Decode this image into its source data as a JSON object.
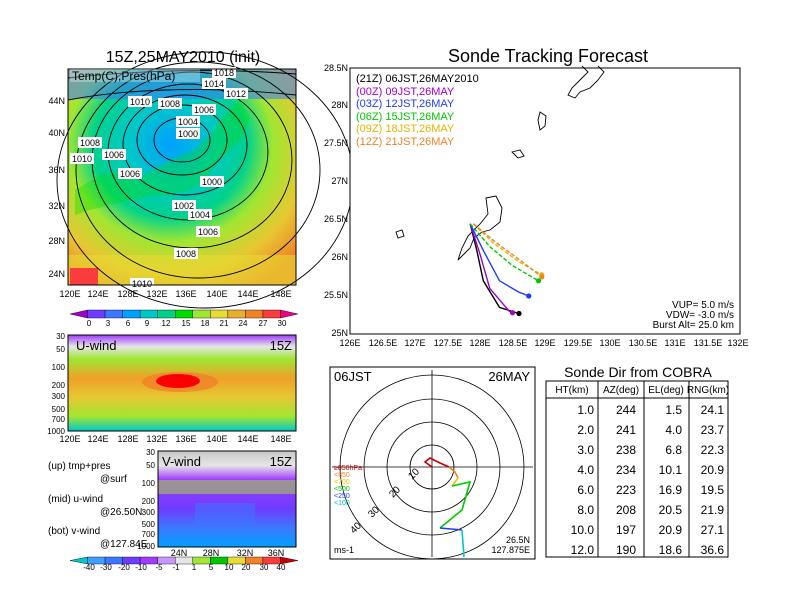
{
  "left_panel": {
    "title": "15Z,25MAY2010 (init)",
    "overlay_label": "Temp(C),Pres(hPa)",
    "lat_labels": [
      "44N",
      "40N",
      "36N",
      "32N",
      "28N",
      "24N"
    ],
    "lon_labels": [
      "120E",
      "124E",
      "128E",
      "132E",
      "136E",
      "140E",
      "144E",
      "148E"
    ],
    "isobar_labels": [
      "1018",
      "1014",
      "1012",
      "1010",
      "1008",
      "1006",
      "1004",
      "1002",
      "1000",
      "1006",
      "1008",
      "1010",
      "1012"
    ],
    "colorbar_labels": [
      "0",
      "3",
      "6",
      "9",
      "12",
      "15",
      "18",
      "21",
      "24",
      "27",
      "30"
    ],
    "colorbar_colors": [
      "#a000c8",
      "#6e3cff",
      "#3c78ff",
      "#00a0ff",
      "#00c8c8",
      "#00d28c",
      "#00dc00",
      "#a0e632",
      "#e6dc32",
      "#e6af2d",
      "#f08228",
      "#fa3c3c",
      "#f00082"
    ]
  },
  "uwind_panel": {
    "label": "U-wind",
    "time": "15Z",
    "y_labels": [
      "30",
      "50",
      "100",
      "200",
      "300",
      "500",
      "700",
      "1000"
    ],
    "x_labels": [
      "120E",
      "124E",
      "128E",
      "132E",
      "136E",
      "140E",
      "144E",
      "148E"
    ]
  },
  "vwind_panel": {
    "label": "V-wind",
    "time": "15Z",
    "y_labels": [
      "30",
      "50",
      "100",
      "200",
      "300",
      "500",
      "700",
      "1000"
    ],
    "x_labels": [
      "24N",
      "28N",
      "32N",
      "36N"
    ],
    "colorbar_labels": [
      "-40",
      "-30",
      "-20",
      "-10",
      "-5",
      "-1",
      "1",
      "5",
      "10",
      "20",
      "30",
      "40"
    ],
    "colorbar_colors": [
      "#00c8c8",
      "#3ca0ff",
      "#3c78ff",
      "#6e3cff",
      "#a03cff",
      "#c896ff",
      "#e6e6e6",
      "#a0e632",
      "#00c800",
      "#e6dc32",
      "#f08228",
      "#fa3c3c",
      "#c80000"
    ]
  },
  "legend_notes": {
    "line1": "(up) tmp+pres",
    "line2": "@surf",
    "line3": "(mid) u-wind",
    "line4": "@26.50N",
    "line5": "(bot) v-wind",
    "line6": "@127.84E"
  },
  "tracking": {
    "title": "Sonde Tracking Forecast",
    "lat_labels": [
      "28.5N",
      "28N",
      "27.5N",
      "27N",
      "26.5N",
      "26N",
      "25.5N",
      "25N"
    ],
    "lon_labels": [
      "126E",
      "126.5E",
      "127E",
      "127.5E",
      "128E",
      "128.5E",
      "129E",
      "129.5E",
      "130E",
      "130.5E",
      "131E",
      "131.5E",
      "132E"
    ],
    "launches": [
      {
        "label": "(21Z)  06JST,26MAY2010",
        "color": "#000000"
      },
      {
        "label": "(00Z)  09JST,26MAY",
        "color": "#a000c8"
      },
      {
        "label": "(03Z)  12JST,26MAY",
        "color": "#1e3cff"
      },
      {
        "label": "(06Z)  15JST,26MAY",
        "color": "#00c800"
      },
      {
        "label": "(09Z)  18JST,26MAY",
        "color": "#e6b400"
      },
      {
        "label": "(12Z)  21JST,26MAY",
        "color": "#f08228"
      }
    ],
    "params": {
      "vup": "VUP= 5.0 m/s",
      "vdw": "VDW= -3.0 m/s",
      "burst": "Burst Alt= 25.0 km"
    }
  },
  "polar": {
    "time_label": "06JST",
    "date_label": "26MAY",
    "unit": "ms-1",
    "pos1": "26.5N",
    "pos2": "127.875E",
    "ring_labels": [
      "10",
      "20",
      "30",
      "40"
    ],
    "level_legend": [
      {
        "label": "≥850hPa",
        "color": "#c80000"
      },
      {
        "label": "<850",
        "color": "#f08228"
      },
      {
        "label": "<700",
        "color": "#e6c800"
      },
      {
        "label": "<500",
        "color": "#00c800"
      },
      {
        "label": "<250",
        "color": "#1e3cff"
      },
      {
        "label": "<100",
        "color": "#00c8c8"
      }
    ]
  },
  "sonde_dir": {
    "title": "Sonde Dir from COBRA",
    "headers": [
      "HT(km)",
      "AZ(deg)",
      "EL(deg)",
      "RNG(km)"
    ],
    "rows": [
      [
        "1.0",
        "244",
        "1.5",
        "24.1"
      ],
      [
        "2.0",
        "241",
        "4.0",
        "23.7"
      ],
      [
        "3.0",
        "238",
        "6.8",
        "22.3"
      ],
      [
        "4.0",
        "234",
        "10.1",
        "20.9"
      ],
      [
        "6.0",
        "223",
        "16.9",
        "19.5"
      ],
      [
        "8.0",
        "208",
        "20.5",
        "21.9"
      ],
      [
        "10.0",
        "197",
        "20.9",
        "27.1"
      ],
      [
        "12.0",
        "190",
        "18.6",
        "36.6"
      ]
    ]
  },
  "chart_data": [
    {
      "type": "heatmap",
      "title": "15Z,25MAY2010 (init)",
      "subtitle": "Temp(C),Pres(hPa)",
      "x_ticks": [
        "120E",
        "124E",
        "128E",
        "132E",
        "136E",
        "140E",
        "144E",
        "148E"
      ],
      "y_ticks": [
        "24N",
        "28N",
        "32N",
        "36N",
        "40N",
        "44N"
      ],
      "color_levels": [
        0,
        3,
        6,
        9,
        12,
        15,
        18,
        21,
        24,
        27,
        30
      ],
      "isobar_values_hPa": [
        1018,
        1014,
        1012,
        1010,
        1008,
        1006,
        1004,
        1002,
        1000
      ]
    },
    {
      "type": "heatmap",
      "title": "U-wind",
      "x_ticks": [
        "120E",
        "124E",
        "128E",
        "132E",
        "136E",
        "140E",
        "144E",
        "148E"
      ],
      "y_ticks_hPa": [
        30,
        50,
        100,
        200,
        300,
        500,
        700,
        1000
      ]
    },
    {
      "type": "heatmap",
      "title": "V-wind",
      "x_ticks": [
        "24N",
        "28N",
        "32N",
        "36N"
      ],
      "y_ticks_hPa": [
        30,
        50,
        100,
        200,
        300,
        500,
        700,
        1000
      ],
      "color_levels": [
        -40,
        -30,
        -20,
        -10,
        -5,
        -1,
        1,
        5,
        10,
        20,
        30,
        40
      ]
    },
    {
      "type": "line",
      "title": "Sonde Tracking Forecast",
      "xlim": [
        126,
        132
      ],
      "ylim": [
        25,
        28.5
      ],
      "series": [
        {
          "name": "(21Z) 06JST,26MAY2010",
          "points": [
            [
              127.85,
              26.45
            ],
            [
              127.95,
              26.1
            ],
            [
              128.05,
              25.7
            ],
            [
              128.3,
              25.35
            ],
            [
              128.6,
              25.27
            ]
          ]
        },
        {
          "name": "(00Z) 09JST,26MAY",
          "points": [
            [
              127.85,
              26.45
            ],
            [
              128.0,
              26.05
            ],
            [
              128.15,
              25.6
            ],
            [
              128.45,
              25.3
            ],
            [
              128.5,
              25.28
            ]
          ]
        },
        {
          "name": "(03Z) 12JST,26MAY",
          "points": [
            [
              127.85,
              26.45
            ],
            [
              128.05,
              26.1
            ],
            [
              128.3,
              25.7
            ],
            [
              128.6,
              25.55
            ],
            [
              128.75,
              25.5
            ]
          ]
        },
        {
          "name": "(06Z) 15JST,26MAY",
          "points": [
            [
              127.85,
              26.45
            ],
            [
              128.15,
              26.15
            ],
            [
              128.5,
              25.9
            ],
            [
              128.9,
              25.7
            ]
          ]
        },
        {
          "name": "(09Z) 18JST,26MAY",
          "points": [
            [
              127.9,
              26.45
            ],
            [
              128.2,
              26.2
            ],
            [
              128.6,
              25.95
            ],
            [
              128.95,
              25.78
            ]
          ]
        },
        {
          "name": "(12Z) 21JST,26MAY",
          "points": [
            [
              127.9,
              26.45
            ],
            [
              128.25,
              26.2
            ],
            [
              128.65,
              25.95
            ],
            [
              128.95,
              25.75
            ]
          ]
        }
      ]
    },
    {
      "type": "table",
      "title": "Sonde Dir from COBRA",
      "columns": [
        "HT(km)",
        "AZ(deg)",
        "EL(deg)",
        "RNG(km)"
      ],
      "rows": [
        [
          1.0,
          244,
          1.5,
          24.1
        ],
        [
          2.0,
          241,
          4.0,
          23.7
        ],
        [
          3.0,
          238,
          6.8,
          22.3
        ],
        [
          4.0,
          234,
          10.1,
          20.9
        ],
        [
          6.0,
          223,
          16.9,
          19.5
        ],
        [
          8.0,
          208,
          20.5,
          21.9
        ],
        [
          10.0,
          197,
          20.9,
          27.1
        ],
        [
          12.0,
          190,
          18.6,
          36.6
        ]
      ]
    }
  ]
}
